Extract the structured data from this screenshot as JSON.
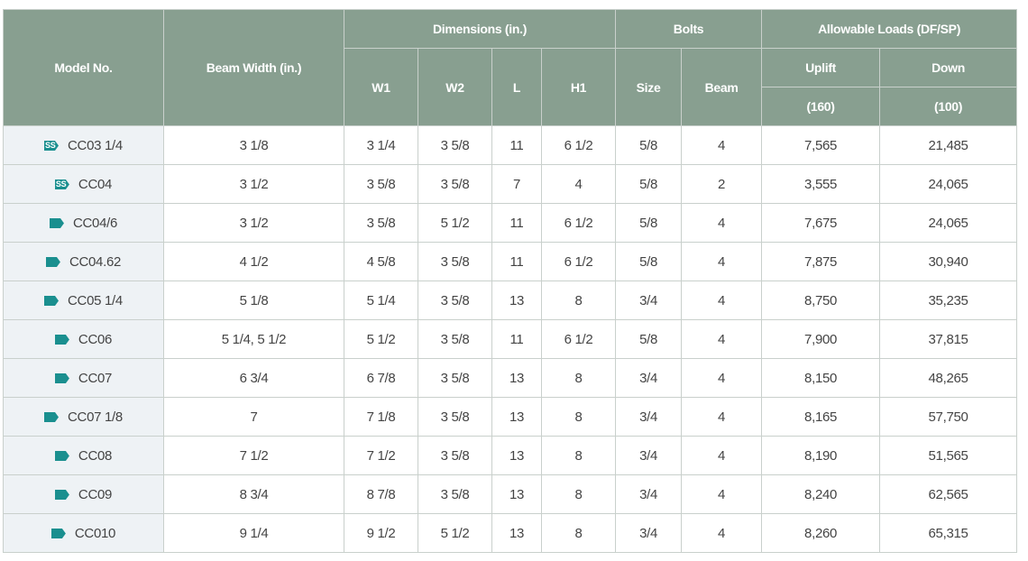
{
  "headers": {
    "model": "Model No.",
    "beam_width": "Beam Width (in.)",
    "dimensions": "Dimensions (in.)",
    "w1": "W1",
    "w2": "W2",
    "l": "L",
    "h1": "H1",
    "bolts": "Bolts",
    "size": "Size",
    "beam": "Beam",
    "loads": "Allowable Loads (DF/SP)",
    "uplift": "Uplift",
    "down": "Down",
    "uplift_factor": "(160)",
    "down_factor": "(100)"
  },
  "icon_color": "#1a8f8f",
  "rows": [
    {
      "icon": "ss",
      "icon_text": "SS",
      "model": "CC03 1/4",
      "bw": "3 1/8",
      "w1": "3 1/4",
      "w2": "3 5/8",
      "l": "11",
      "h1": "6 1/2",
      "size": "5/8",
      "beam": "4",
      "uplift": "7,565",
      "down": "21,485"
    },
    {
      "icon": "ss",
      "icon_text": "SS",
      "model": "CC04",
      "bw": "3 1/2",
      "w1": "3 5/8",
      "w2": "3 5/8",
      "l": "7",
      "h1": "4",
      "size": "5/8",
      "beam": "2",
      "uplift": "3,555",
      "down": "24,065"
    },
    {
      "icon": "tag",
      "model": "CC04/6",
      "bw": "3 1/2",
      "w1": "3 5/8",
      "w2": "5 1/2",
      "l": "11",
      "h1": "6 1/2",
      "size": "5/8",
      "beam": "4",
      "uplift": "7,675",
      "down": "24,065"
    },
    {
      "icon": "tag",
      "model": "CC04.62",
      "bw": "4 1/2",
      "w1": "4 5/8",
      "w2": "3 5/8",
      "l": "11",
      "h1": "6 1/2",
      "size": "5/8",
      "beam": "4",
      "uplift": "7,875",
      "down": "30,940"
    },
    {
      "icon": "tag",
      "model": "CC05 1/4",
      "bw": "5 1/8",
      "w1": "5 1/4",
      "w2": "3 5/8",
      "l": "13",
      "h1": "8",
      "size": "3/4",
      "beam": "4",
      "uplift": "8,750",
      "down": "35,235"
    },
    {
      "icon": "tag",
      "model": "CC06",
      "bw": "5 1/4, 5 1/2",
      "w1": "5 1/2",
      "w2": "3 5/8",
      "l": "11",
      "h1": "6 1/2",
      "size": "5/8",
      "beam": "4",
      "uplift": "7,900",
      "down": "37,815"
    },
    {
      "icon": "tag",
      "model": "CC07",
      "bw": "6 3/4",
      "w1": "6 7/8",
      "w2": "3 5/8",
      "l": "13",
      "h1": "8",
      "size": "3/4",
      "beam": "4",
      "uplift": "8,150",
      "down": "48,265"
    },
    {
      "icon": "tag",
      "model": "CC07 1/8",
      "bw": "7",
      "w1": "7 1/8",
      "w2": "3 5/8",
      "l": "13",
      "h1": "8",
      "size": "3/4",
      "beam": "4",
      "uplift": "8,165",
      "down": "57,750"
    },
    {
      "icon": "tag",
      "model": "CC08",
      "bw": "7 1/2",
      "w1": "7 1/2",
      "w2": "3 5/8",
      "l": "13",
      "h1": "8",
      "size": "3/4",
      "beam": "4",
      "uplift": "8,190",
      "down": "51,565"
    },
    {
      "icon": "tag",
      "model": "CC09",
      "bw": "8 3/4",
      "w1": "8 7/8",
      "w2": "3 5/8",
      "l": "13",
      "h1": "8",
      "size": "3/4",
      "beam": "4",
      "uplift": "8,240",
      "down": "62,565"
    },
    {
      "icon": "tag",
      "model": "CC010",
      "bw": "9 1/4",
      "w1": "9 1/2",
      "w2": "5 1/2",
      "l": "13",
      "h1": "8",
      "size": "3/4",
      "beam": "4",
      "uplift": "8,260",
      "down": "65,315"
    }
  ]
}
